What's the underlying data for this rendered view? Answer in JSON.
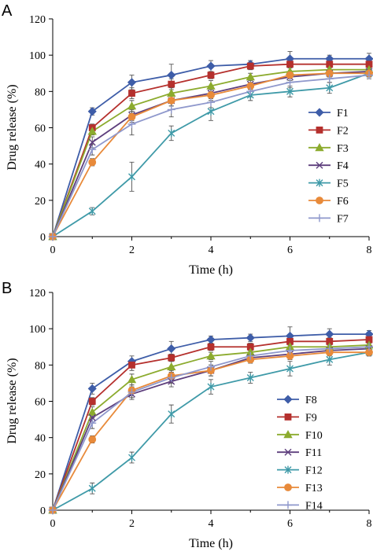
{
  "chart_data": [
    {
      "panel": "A",
      "type": "line",
      "xlabel": "Time (h)",
      "ylabel": "Drug release (%)",
      "xlim": [
        0,
        8
      ],
      "ylim": [
        0,
        120
      ],
      "xticks": [
        "0",
        "2",
        "4",
        "6",
        "8"
      ],
      "yticks": [
        "0",
        "20",
        "40",
        "60",
        "80",
        "100",
        "120"
      ],
      "grid": false,
      "legend_position": "right",
      "x": [
        0,
        1,
        2,
        3,
        4,
        5,
        6,
        7,
        8
      ],
      "series": [
        {
          "name": "F1",
          "color": "#3e5da8",
          "marker": "diamond",
          "values": [
            0,
            69,
            85,
            89,
            94,
            95,
            98,
            98,
            98
          ],
          "errors": [
            0,
            2,
            4,
            6,
            3,
            2,
            4,
            2,
            3
          ]
        },
        {
          "name": "F2",
          "color": "#b5302d",
          "marker": "square",
          "values": [
            0,
            60,
            79,
            84,
            89,
            94,
            95,
            95,
            95
          ],
          "errors": [
            0,
            2,
            3,
            3,
            2,
            2,
            2,
            2,
            2
          ]
        },
        {
          "name": "F3",
          "color": "#8cab2e",
          "marker": "triangle",
          "values": [
            0,
            58,
            72,
            79,
            83,
            88,
            91,
            92,
            92
          ],
          "errors": [
            0,
            2,
            3,
            3,
            3,
            2,
            2,
            2,
            2
          ]
        },
        {
          "name": "F4",
          "color": "#5e3f7d",
          "marker": "x",
          "values": [
            0,
            52,
            67,
            75,
            79,
            84,
            88,
            90,
            91
          ],
          "errors": [
            0,
            3,
            3,
            3,
            3,
            3,
            2,
            2,
            2
          ]
        },
        {
          "name": "F5",
          "color": "#3f9aa8",
          "marker": "star",
          "values": [
            0,
            14,
            33,
            57,
            69,
            78,
            80,
            82,
            90
          ],
          "errors": [
            0,
            2,
            8,
            4,
            5,
            3,
            3,
            3,
            2
          ]
        },
        {
          "name": "F6",
          "color": "#e88a3a",
          "marker": "circle",
          "values": [
            0,
            41,
            66,
            75,
            78,
            83,
            89,
            90,
            90
          ],
          "errors": [
            0,
            2,
            3,
            3,
            3,
            2,
            2,
            2,
            2
          ]
        },
        {
          "name": "F7",
          "color": "#8f98cc",
          "marker": "plus",
          "values": [
            0,
            48,
            62,
            70,
            74,
            80,
            85,
            87,
            89
          ],
          "errors": [
            0,
            3,
            6,
            4,
            3,
            3,
            3,
            2,
            2
          ]
        }
      ]
    },
    {
      "panel": "B",
      "type": "line",
      "xlabel": "Time (h)",
      "ylabel": "Drug release (%)",
      "xlim": [
        0,
        8
      ],
      "ylim": [
        0,
        120
      ],
      "xticks": [
        "0",
        "2",
        "4",
        "6",
        "8"
      ],
      "yticks": [
        "0",
        "20",
        "40",
        "60",
        "80",
        "100",
        "120"
      ],
      "grid": false,
      "legend_position": "right",
      "x": [
        0,
        1,
        2,
        3,
        4,
        5,
        6,
        7,
        8
      ],
      "series": [
        {
          "name": "F8",
          "color": "#3e5da8",
          "marker": "diamond",
          "values": [
            0,
            67,
            82,
            89,
            94,
            95,
            96,
            97,
            97
          ],
          "errors": [
            0,
            3,
            3,
            4,
            2,
            2,
            5,
            3,
            2
          ]
        },
        {
          "name": "F9",
          "color": "#b5302d",
          "marker": "square",
          "values": [
            0,
            60,
            80,
            84,
            90,
            90,
            93,
            93,
            94
          ],
          "errors": [
            0,
            2,
            3,
            2,
            2,
            2,
            2,
            2,
            2
          ]
        },
        {
          "name": "F10",
          "color": "#8cab2e",
          "marker": "triangle",
          "values": [
            0,
            54,
            72,
            79,
            85,
            87,
            90,
            90,
            91
          ],
          "errors": [
            0,
            3,
            3,
            3,
            2,
            2,
            2,
            2,
            2
          ]
        },
        {
          "name": "F11",
          "color": "#5e3f7d",
          "marker": "x",
          "values": [
            0,
            51,
            64,
            71,
            77,
            84,
            86,
            88,
            89
          ],
          "errors": [
            0,
            3,
            3,
            3,
            3,
            2,
            2,
            2,
            2
          ]
        },
        {
          "name": "F12",
          "color": "#3f9aa8",
          "marker": "star",
          "values": [
            0,
            12,
            29,
            53,
            68,
            73,
            78,
            83,
            87
          ],
          "errors": [
            0,
            3,
            3,
            5,
            4,
            3,
            4,
            3,
            2
          ]
        },
        {
          "name": "F13",
          "color": "#e88a3a",
          "marker": "circle",
          "values": [
            0,
            39,
            66,
            74,
            77,
            83,
            85,
            87,
            87
          ],
          "errors": [
            0,
            2,
            3,
            3,
            3,
            2,
            2,
            2,
            2
          ]
        },
        {
          "name": "F14",
          "color": "#8f98cc",
          "marker": "plus",
          "values": [
            0,
            48,
            65,
            73,
            79,
            85,
            88,
            89,
            90
          ],
          "errors": [
            0,
            3,
            3,
            3,
            3,
            3,
            2,
            2,
            2
          ]
        }
      ]
    }
  ]
}
